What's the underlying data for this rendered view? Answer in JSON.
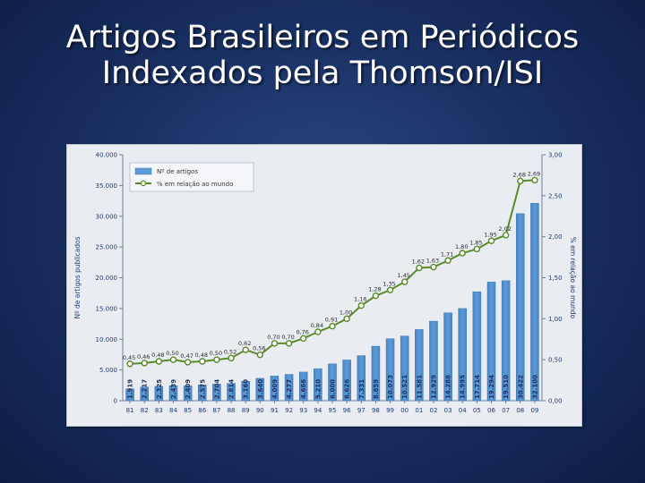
{
  "slide": {
    "title_line1": "Artigos Brasileiros em Periódicos",
    "title_line2": "Indexados pela Thomson/ISI"
  },
  "chart_data": {
    "type": "bar",
    "title": "",
    "xlabel": "",
    "ylabel": "Nº de artigos publicados",
    "y2label": "% em relação ao mundo",
    "categories": [
      "81",
      "82",
      "83",
      "84",
      "85",
      "86",
      "87",
      "88",
      "89",
      "90",
      "91",
      "92",
      "93",
      "94",
      "95",
      "96",
      "97",
      "98",
      "99",
      "00",
      "01",
      "02",
      "03",
      "04",
      "05",
      "06",
      "07",
      "08",
      "09"
    ],
    "ylim": [
      0,
      40000
    ],
    "y2lim": [
      0,
      3.0
    ],
    "yticks": [
      "0",
      "5.000",
      "10.000",
      "15.000",
      "20.000",
      "25.000",
      "30.000",
      "35.000",
      "40.000"
    ],
    "y2ticks": [
      "0,00",
      "0,50",
      "1,00",
      "1,50",
      "2,00",
      "2,50",
      "3,00"
    ],
    "grid": false,
    "legend_position": "top-left",
    "series": [
      {
        "name": "Nº de artigos",
        "kind": "bar",
        "axis": "left",
        "color": "#5b9bd5",
        "values": [
          1919,
          2217,
          2325,
          2439,
          2409,
          2575,
          2704,
          2814,
          3160,
          3640,
          4009,
          4277,
          4666,
          5210,
          6000,
          6626,
          7331,
          8859,
          10073,
          10521,
          11581,
          12929,
          14288,
          14995,
          17714,
          19294,
          19510,
          30422,
          32100
        ],
        "labels": [
          "1.919",
          "2.217",
          "2.325",
          "2.439",
          "2.409",
          "2.575",
          "2.704",
          "2.814",
          "3.160",
          "3.640",
          "4.009",
          "4.277",
          "4.666",
          "5.210",
          "6.000",
          "6.626",
          "7.331",
          "8.859",
          "10.073",
          "10.521",
          "11.581",
          "12.929",
          "14.288",
          "14.995",
          "17.714",
          "19.294",
          "19.510",
          "30.422",
          "32.100"
        ]
      },
      {
        "name": "% em relação ao mundo",
        "kind": "line",
        "axis": "right",
        "color": "#5a8a2a",
        "values": [
          0.45,
          0.46,
          0.48,
          0.5,
          0.47,
          0.48,
          0.5,
          0.52,
          0.62,
          0.56,
          0.7,
          0.7,
          0.76,
          0.84,
          0.91,
          1.0,
          1.16,
          1.28,
          1.35,
          1.45,
          1.62,
          1.63,
          1.71,
          1.8,
          1.85,
          1.95,
          2.02,
          2.68,
          2.69
        ],
        "labels": [
          "0,45",
          "0,46",
          "0,48",
          "0,50",
          "0,47",
          "0,48",
          "0,50",
          "0,52",
          "0,62",
          "0,56",
          "0,70",
          "0,70",
          "0,76",
          "0,84",
          "0,91",
          "1,00",
          "1,16",
          "1,28",
          "1,35",
          "1,45",
          "1,62",
          "1,63",
          "1,71",
          "1,80",
          "1,85",
          "1,95",
          "2,02",
          "2,68",
          "2,69"
        ]
      }
    ]
  }
}
